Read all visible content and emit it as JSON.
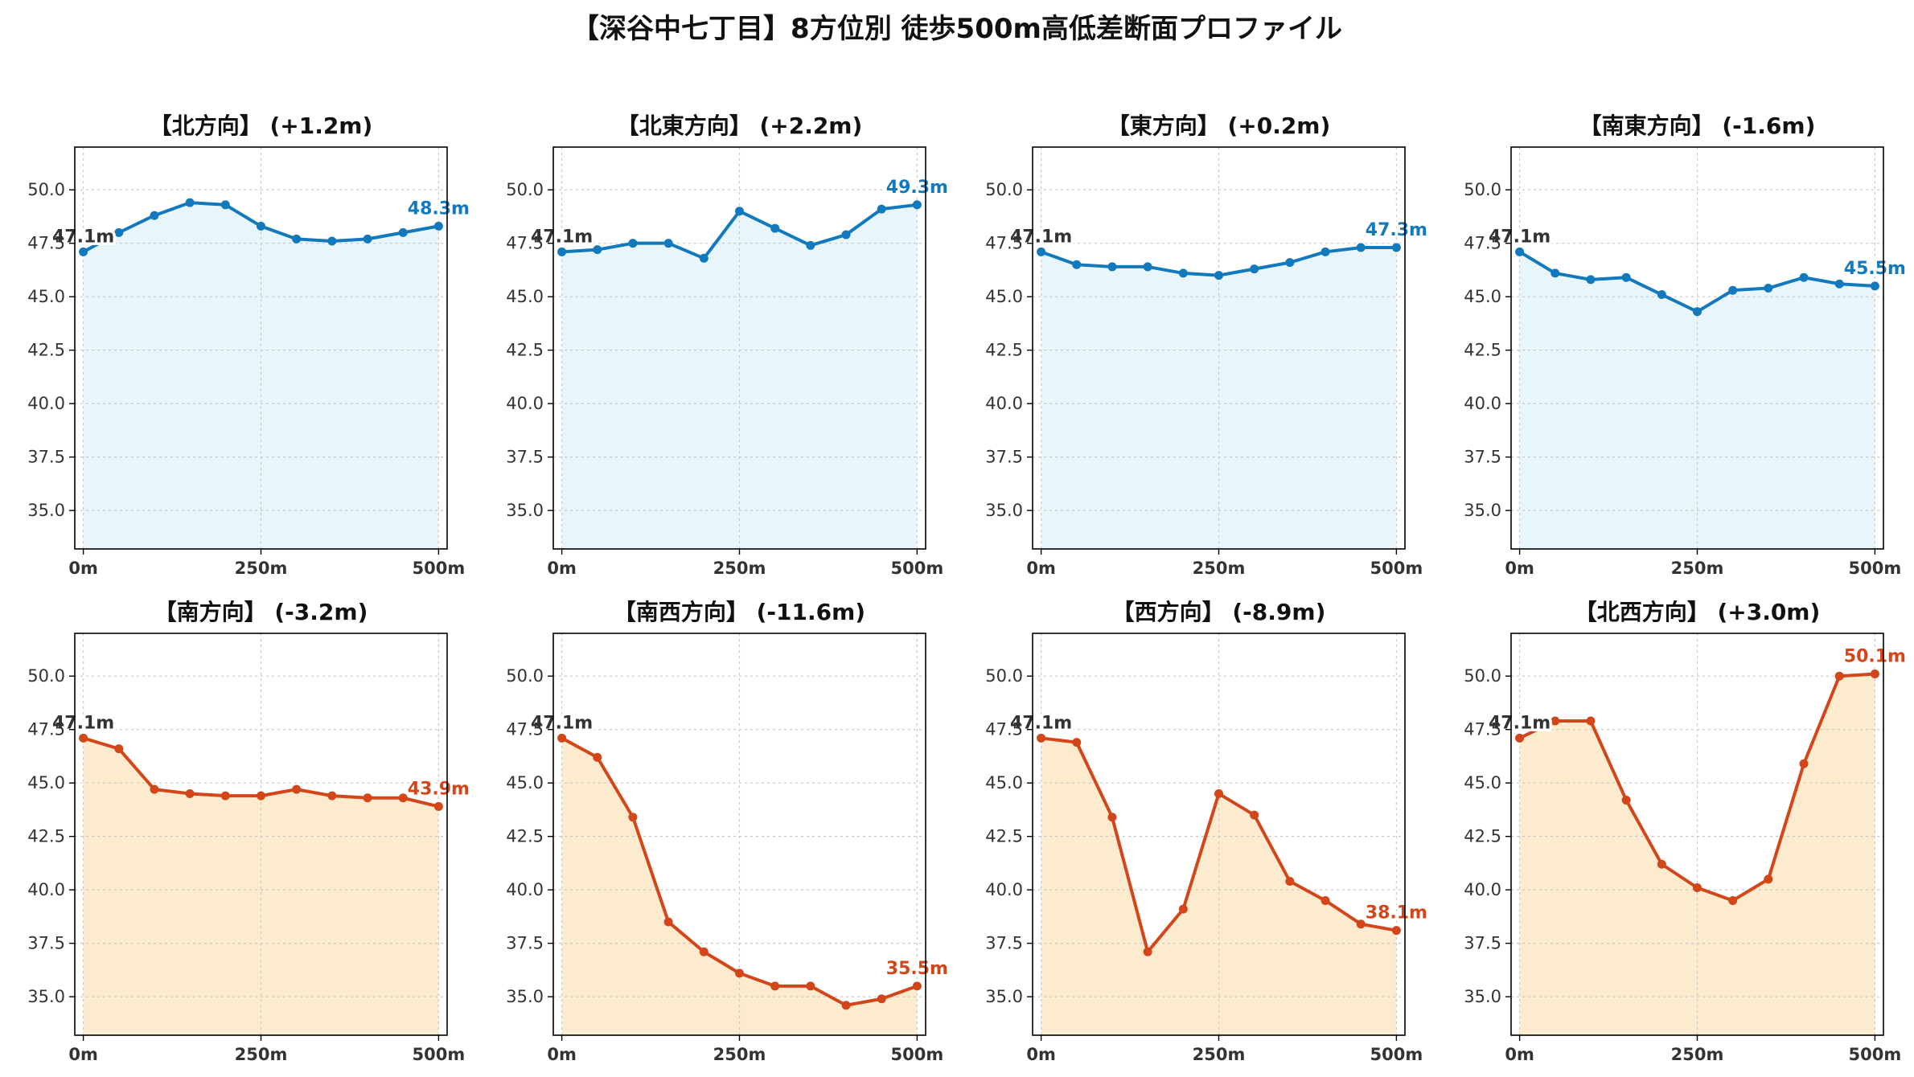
{
  "title": "【深谷中七丁目】8方位別 徒歩500m高低差断面プロファイル",
  "colors": {
    "up_line": "#1279bd",
    "up_fill": "#e8f6fc",
    "down_line": "#d3461a",
    "down_fill": "#fdebd0",
    "grid": "#c8c8c8",
    "axis": "#000000"
  },
  "chart_data": [
    {
      "type": "line",
      "title": "【北方向】 (+1.2m)",
      "trend": "up",
      "x": [
        0,
        50,
        100,
        150,
        200,
        250,
        300,
        350,
        400,
        450,
        500
      ],
      "y": [
        47.1,
        48.0,
        48.8,
        49.4,
        49.3,
        48.3,
        47.7,
        47.6,
        47.7,
        48.0,
        48.3
      ],
      "start_label": "47.1m",
      "end_label": "48.3m"
    },
    {
      "type": "line",
      "title": "【北東方向】 (+2.2m)",
      "trend": "up",
      "x": [
        0,
        50,
        100,
        150,
        200,
        250,
        300,
        350,
        400,
        450,
        500
      ],
      "y": [
        47.1,
        47.2,
        47.5,
        47.5,
        46.8,
        49.0,
        48.2,
        47.4,
        47.9,
        49.1,
        49.3
      ],
      "start_label": "47.1m",
      "end_label": "49.3m"
    },
    {
      "type": "line",
      "title": "【東方向】 (+0.2m)",
      "trend": "up",
      "x": [
        0,
        50,
        100,
        150,
        200,
        250,
        300,
        350,
        400,
        450,
        500
      ],
      "y": [
        47.1,
        46.5,
        46.4,
        46.4,
        46.1,
        46.0,
        46.3,
        46.6,
        47.1,
        47.3,
        47.3
      ],
      "start_label": "47.1m",
      "end_label": "47.3m"
    },
    {
      "type": "line",
      "title": "【南東方向】 (-1.6m)",
      "trend": "up",
      "x": [
        0,
        50,
        100,
        150,
        200,
        250,
        300,
        350,
        400,
        450,
        500
      ],
      "y": [
        47.1,
        46.1,
        45.8,
        45.9,
        45.1,
        44.3,
        45.3,
        45.4,
        45.9,
        45.6,
        45.5
      ],
      "start_label": "47.1m",
      "end_label": "45.5m"
    },
    {
      "type": "line",
      "title": "【南方向】 (-3.2m)",
      "trend": "down",
      "x": [
        0,
        50,
        100,
        150,
        200,
        250,
        300,
        350,
        400,
        450,
        500
      ],
      "y": [
        47.1,
        46.6,
        44.7,
        44.5,
        44.4,
        44.4,
        44.7,
        44.4,
        44.3,
        44.3,
        43.9
      ],
      "start_label": "47.1m",
      "end_label": "43.9m"
    },
    {
      "type": "line",
      "title": "【南西方向】 (-11.6m)",
      "trend": "down",
      "x": [
        0,
        50,
        100,
        150,
        200,
        250,
        300,
        350,
        400,
        450,
        500
      ],
      "y": [
        47.1,
        46.2,
        43.4,
        38.5,
        37.1,
        36.1,
        35.5,
        35.5,
        34.6,
        34.9,
        35.5
      ],
      "start_label": "47.1m",
      "end_label": "35.5m"
    },
    {
      "type": "line",
      "title": "【西方向】 (-8.9m)",
      "trend": "down",
      "x": [
        0,
        50,
        100,
        150,
        200,
        250,
        300,
        350,
        400,
        450,
        500
      ],
      "y": [
        47.1,
        46.9,
        43.4,
        37.1,
        39.1,
        44.5,
        43.5,
        40.4,
        39.5,
        38.4,
        38.1
      ],
      "start_label": "47.1m",
      "end_label": "38.1m"
    },
    {
      "type": "line",
      "title": "【北西方向】 (+3.0m)",
      "trend": "down",
      "x": [
        0,
        50,
        100,
        150,
        200,
        250,
        300,
        350,
        400,
        450,
        500
      ],
      "y": [
        47.1,
        47.9,
        47.9,
        44.2,
        41.2,
        40.1,
        39.5,
        40.5,
        45.9,
        50.0,
        50.1
      ],
      "start_label": "47.1m",
      "end_label": "50.1m"
    }
  ],
  "axes": {
    "ylim": [
      33.2,
      52.0
    ],
    "xlim": [
      -12,
      512
    ],
    "y_ticks": [
      "35.0",
      "37.5",
      "40.0",
      "42.5",
      "45.0",
      "47.5",
      "50.0"
    ],
    "x_ticks": [
      {
        "value": 0,
        "label": "0m"
      },
      {
        "value": 250,
        "label": "250m"
      },
      {
        "value": 500,
        "label": "500m"
      }
    ],
    "grid": true
  }
}
